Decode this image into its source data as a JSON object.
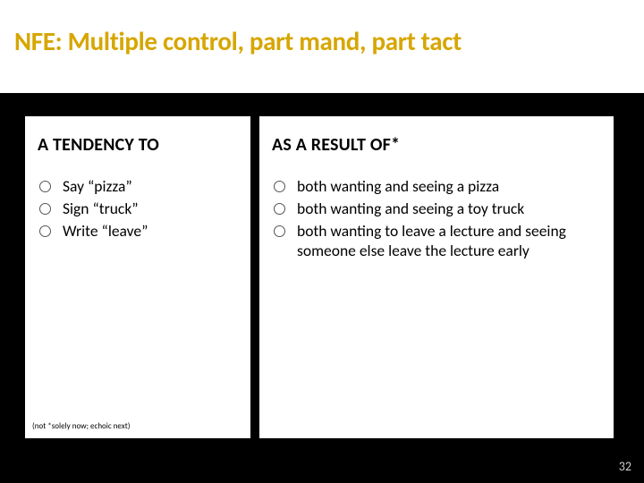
{
  "title": "NFE: Multiple control, part mand, part tact",
  "background_color": "#000000",
  "title_band_color": "#ffffff",
  "title_color": "#d7a600",
  "title_fontsize": 29,
  "columns": {
    "left": {
      "heading": "A TENDENCY TO",
      "items": [
        "Say “pizza”",
        "Sign “truck”",
        "Write “leave”"
      ]
    },
    "right": {
      "heading": "AS A RESULT OF*",
      "items": [
        "both wanting and seeing a pizza",
        "both wanting and seeing a toy truck",
        "both wanting to leave a lecture and seeing someone else leave the lecture early"
      ]
    }
  },
  "column_bg": "#ffffff",
  "heading_fontsize": 20,
  "body_fontsize": 17.5,
  "bullet_ring_color": "#555555",
  "body_text_color": "#000000",
  "footnote": "(not *solely now; echoic next)",
  "footnote_fontsize": 9,
  "page_number": "32",
  "page_number_color": "#cccccc"
}
